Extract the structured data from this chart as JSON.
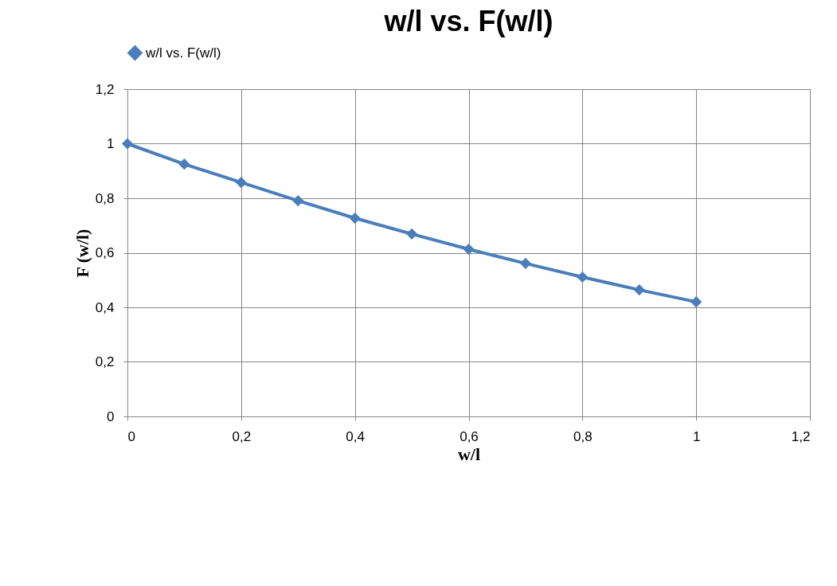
{
  "chart_data": {
    "type": "line",
    "title": "w/l vs. F(w/l)",
    "xlabel": "w/l",
    "ylabel": "F (w/l)",
    "x": [
      0,
      0.1,
      0.2,
      0.3,
      0.4,
      0.5,
      0.6,
      0.7,
      0.8,
      0.9,
      1
    ],
    "series": [
      {
        "name": "w/l vs. F(w/l)",
        "color": "#4a7ebb",
        "values": [
          1.0,
          0.925,
          0.858,
          0.791,
          0.727,
          0.669,
          0.613,
          0.561,
          0.511,
          0.464,
          0.42
        ]
      }
    ],
    "xlim": [
      0,
      1.2
    ],
    "ylim": [
      0,
      1.2
    ],
    "xticks": [
      0,
      {
        "value": 0.2,
        "label": "0,2"
      },
      {
        "value": 0.4,
        "label": "0,4"
      },
      {
        "value": 0.6,
        "label": "0,6"
      },
      {
        "value": 0.8,
        "label": "0,8"
      },
      1,
      {
        "value": 1.2,
        "label": "1,2"
      }
    ],
    "yticks": [
      0,
      {
        "value": 0.2,
        "label": "0,2"
      },
      {
        "value": 0.4,
        "label": "0,4"
      },
      {
        "value": 0.6,
        "label": "0,6"
      },
      {
        "value": 0.8,
        "label": "0,8"
      },
      1,
      {
        "value": 1.2,
        "label": "1,2"
      }
    ],
    "grid": true,
    "legend": "top",
    "marker": "diamond",
    "line_style": "solid"
  }
}
